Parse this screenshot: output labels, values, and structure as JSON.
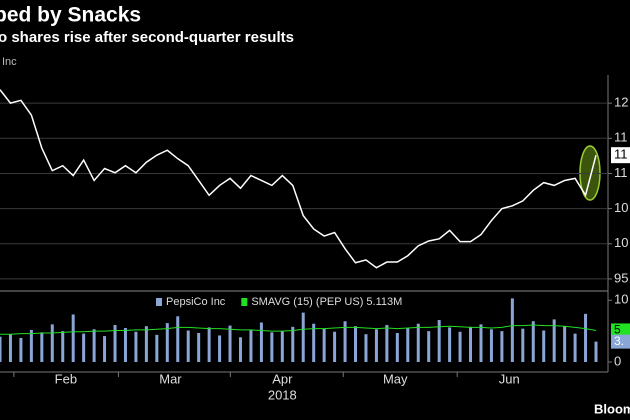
{
  "title": "ped by Snacks",
  "subtitle": "o shares rise after second-quarter results",
  "source": "Bloom",
  "chart_data": [
    {
      "type": "line",
      "series": [
        {
          "name": "Inc",
          "color": "#ffffff",
          "values": [
            121.9,
            120,
            120.4,
            118.3,
            113.6,
            110.4,
            111.1,
            109.7,
            111.9,
            109,
            110.7,
            110.1,
            111.1,
            110.1,
            111.6,
            112.6,
            113.3,
            112.1,
            111.1,
            109,
            106.9,
            108.3,
            109.3,
            107.9,
            109.7,
            109,
            108.3,
            109.7,
            108.3,
            104,
            102.1,
            101.1,
            101.6,
            99.3,
            97.3,
            97.7,
            96.6,
            97.4,
            97.4,
            98.3,
            99.7,
            100.4,
            100.7,
            101.9,
            100.3,
            100.3,
            101.3,
            103.3,
            105,
            105.4,
            106.1,
            107.6,
            108.7,
            108.3,
            109,
            109.3,
            106.9,
            112.6
          ]
        }
      ],
      "ylim": [
        93,
        124
      ],
      "yticks": [
        {
          "value": 120,
          "label": "12"
        },
        {
          "value": 115,
          "label": "11"
        },
        {
          "value": 110,
          "label": "11"
        },
        {
          "value": 105,
          "label": "10"
        },
        {
          "value": 100,
          "label": "10"
        },
        95
      ],
      "current_label": {
        "value": 112.6,
        "label": "11"
      },
      "grid": true
    },
    {
      "type": "bar",
      "series": [
        {
          "name": "PepsiCo Inc",
          "color": "#8aa6d6",
          "values": [
            4.1,
            4.5,
            3.9,
            5.2,
            4.8,
            6.1,
            5.0,
            7.7,
            4.6,
            5.3,
            4.2,
            6.0,
            5.5,
            4.9,
            5.8,
            4.4,
            6.3,
            7.4,
            5.1,
            4.7,
            5.6,
            4.3,
            5.9,
            4.0,
            5.2,
            6.4,
            4.8,
            5.0,
            5.7,
            8.0,
            6.2,
            5.4,
            4.9,
            6.6,
            5.8,
            4.5,
            5.3,
            6.0,
            4.7,
            5.5,
            6.2,
            5.0,
            6.8,
            5.6,
            4.9,
            5.7,
            6.1,
            5.3,
            5.0,
            10.3,
            5.4,
            6.6,
            5.1,
            6.9,
            5.8,
            4.6,
            7.8,
            3.3
          ]
        },
        {
          "name": "SMAVG (15) (PEP US) 5.113M",
          "color": "#22e022",
          "type": "line",
          "values": [
            4.5,
            4.5,
            4.6,
            4.6,
            4.7,
            4.7,
            4.8,
            4.9,
            4.9,
            5.0,
            5.0,
            5.1,
            5.1,
            5.2,
            5.2,
            5.3,
            5.4,
            5.6,
            5.6,
            5.5,
            5.4,
            5.4,
            5.3,
            5.2,
            5.2,
            5.1,
            5.0,
            5.0,
            5.1,
            5.3,
            5.4,
            5.4,
            5.5,
            5.6,
            5.6,
            5.5,
            5.4,
            5.5,
            5.4,
            5.5,
            5.6,
            5.6,
            5.7,
            5.8,
            5.7,
            5.6,
            5.6,
            5.5,
            5.6,
            5.9,
            5.9,
            6.0,
            5.9,
            5.9,
            5.8,
            5.6,
            5.4,
            5.1
          ]
        }
      ],
      "ylim": [
        0,
        11.5
      ],
      "yticks": [
        10,
        0
      ],
      "current_labels": [
        {
          "value": 5.113,
          "label": "5"
        },
        {
          "value": 3.3,
          "label": "3."
        }
      ],
      "xticks": [
        {
          "value": 6.3,
          "label": "Feb"
        },
        {
          "value": 16.3,
          "label": "Mar"
        },
        {
          "value": 27,
          "label": "Apr"
        },
        {
          "value": 37.8,
          "label": "May"
        },
        {
          "value": 48.7,
          "label": "Jun"
        }
      ],
      "xlabel": "2018"
    }
  ]
}
